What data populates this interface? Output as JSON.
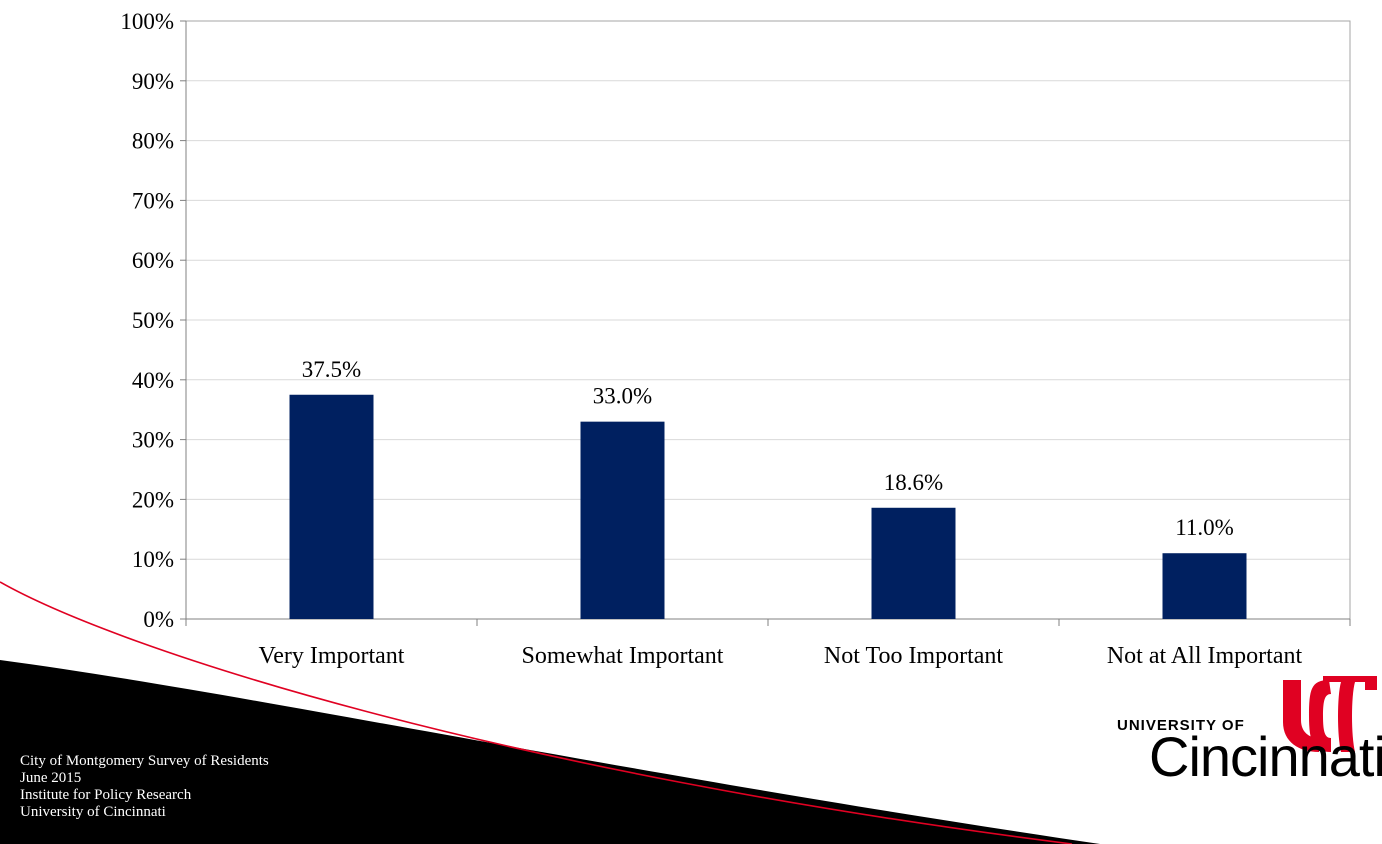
{
  "chart_data": {
    "type": "bar",
    "categories": [
      "Very Important",
      "Somewhat Important",
      "Not Too Important",
      "Not at All Important"
    ],
    "values": [
      37.5,
      33.0,
      18.6,
      11.0
    ],
    "data_labels": [
      "37.5%",
      "33.0%",
      "18.6%",
      "11.0%"
    ],
    "ylim": [
      0,
      100
    ],
    "yticks": [
      "0%",
      "10%",
      "20%",
      "30%",
      "40%",
      "50%",
      "60%",
      "70%",
      "80%",
      "90%",
      "100%"
    ],
    "title": "",
    "xlabel": "",
    "ylabel": "",
    "grid": true,
    "bar_color": "#002060"
  },
  "footer": {
    "line1": "City of Montgomery Survey of Residents",
    "line2": "June 2015",
    "line3": "Institute for Policy Research",
    "line4": "University of Cincinnati"
  },
  "logo": {
    "small": "UNIVERSITY OF",
    "big": "Cincinnati",
    "mark_color": "#e00122"
  },
  "colors": {
    "swoosh_black": "#000000",
    "swoosh_red": "#e00122",
    "grid": "#d9d9d9",
    "axis": "#808080"
  }
}
